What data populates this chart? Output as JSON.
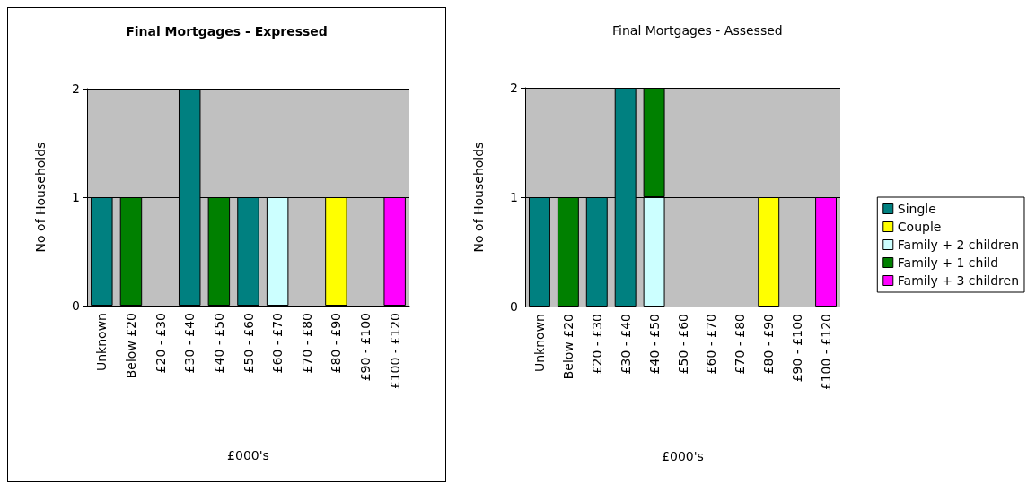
{
  "chart_data": [
    {
      "type": "bar",
      "title": "Final Mortgages - Expressed",
      "xlabel": "£000's",
      "ylabel": "No of Households",
      "stacked": true,
      "categories": [
        "Unknown",
        "Below £20",
        "£20 - £30",
        "£30 - £40",
        "£40 - £50",
        "£50 - £60",
        "£60 - £70",
        "£70 - £80",
        "£80 - £90",
        "£90 - £100",
        "£100 - £120"
      ],
      "series": [
        {
          "color": "#008080",
          "values": [
            1,
            0,
            0,
            2,
            0,
            1,
            0,
            0,
            0,
            0,
            0
          ]
        },
        {
          "color": "#ffff00",
          "values": [
            0,
            0,
            0,
            0,
            0,
            0,
            0,
            0,
            1,
            0,
            0
          ]
        },
        {
          "color": "#008000",
          "values": [
            0,
            1,
            0,
            0,
            1,
            0,
            0,
            0,
            0,
            0,
            0
          ]
        },
        {
          "color": "#ccffff",
          "values": [
            0,
            0,
            0,
            0,
            0,
            0,
            1,
            0,
            0,
            0,
            0
          ]
        },
        {
          "color": "#ff00ff",
          "values": [
            0,
            0,
            0,
            0,
            0,
            0,
            0,
            0,
            0,
            0,
            1
          ]
        }
      ],
      "ylim": [
        0,
        2
      ],
      "yticks": [
        0,
        1,
        2
      ],
      "grid": "y",
      "legend": false
    },
    {
      "type": "bar",
      "title": "Final Mortgages - Assessed",
      "xlabel": "£000's",
      "ylabel": "No of Households",
      "stacked": true,
      "categories": [
        "Unknown",
        "Below £20",
        "£20 - £30",
        "£30 - £40",
        "£40 - £50",
        "£50 - £60",
        "£60 - £70",
        "£70 - £80",
        "£80 - £90",
        "£90 - £100",
        "£100 - £120"
      ],
      "series": [
        {
          "name": "Single",
          "color": "#008080",
          "values": [
            1,
            0,
            1,
            2,
            0,
            0,
            0,
            0,
            0,
            0,
            0
          ]
        },
        {
          "name": "Couple",
          "color": "#ffff00",
          "values": [
            0,
            0,
            0,
            0,
            0,
            0,
            0,
            0,
            1,
            0,
            0
          ]
        },
        {
          "name": "Family + 2 children",
          "color": "#ccffff",
          "values": [
            0,
            0,
            0,
            0,
            1,
            0,
            0,
            0,
            0,
            0,
            0
          ]
        },
        {
          "name": "Family + 1 child",
          "color": "#008000",
          "values": [
            0,
            1,
            0,
            0,
            1,
            0,
            0,
            0,
            0,
            0,
            0
          ]
        },
        {
          "name": "Family + 3 children",
          "color": "#ff00ff",
          "values": [
            0,
            0,
            0,
            0,
            0,
            0,
            0,
            0,
            0,
            0,
            1
          ]
        }
      ],
      "ylim": [
        0,
        2
      ],
      "yticks": [
        0,
        1,
        2
      ],
      "grid": "y",
      "legend": "right"
    }
  ]
}
